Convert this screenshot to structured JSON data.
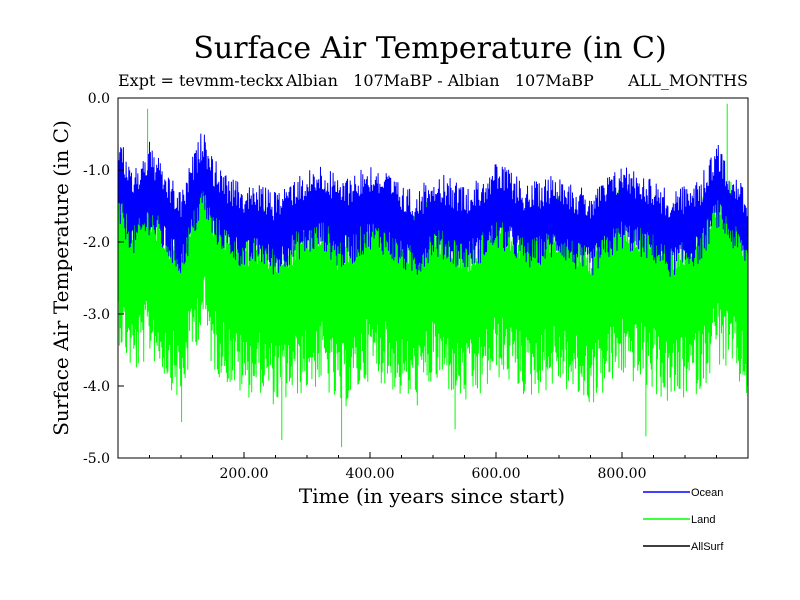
{
  "chart_data": {
    "type": "line",
    "title": "Surface Air Temperature (in C)",
    "subtitle": {
      "experiment": "Expt = tevmm-teckx",
      "comparison": "Albian   107MaBP - Albian   107MaBP",
      "months": "ALL_MONTHS"
    },
    "xlabel": "Time (in years since start)",
    "ylabel": "Surface Air Temperature (in C)",
    "xlim": [
      0,
      1000
    ],
    "ylim": [
      -5.0,
      0.0
    ],
    "x_ticks": [
      200,
      400,
      600,
      800
    ],
    "x_tick_labels": [
      "200.00",
      "400.00",
      "600.00",
      "800.00"
    ],
    "y_ticks": [
      0,
      -1,
      -2,
      -3,
      -4,
      -5
    ],
    "y_tick_labels": [
      "0.0",
      "-1.0",
      "-2.0",
      "-3.0",
      "-4.0",
      "-5.0"
    ],
    "series": [
      {
        "name": "Land",
        "color": "#00ff00",
        "x": [
          0,
          25,
          50,
          75,
          100,
          115,
          135,
          150,
          175,
          200,
          225,
          250,
          275,
          300,
          325,
          350,
          375,
          400,
          425,
          450,
          475,
          500,
          525,
          550,
          575,
          600,
          625,
          650,
          675,
          700,
          725,
          750,
          775,
          800,
          825,
          850,
          875,
          900,
          925,
          950,
          975,
          1000
        ],
        "upper": [
          -0.9,
          -1.3,
          -1.0,
          -1.4,
          -1.6,
          -1.2,
          -0.6,
          -1.1,
          -1.4,
          -1.6,
          -1.5,
          -1.6,
          -1.5,
          -1.4,
          -1.3,
          -1.5,
          -1.4,
          -1.2,
          -1.3,
          -1.5,
          -1.6,
          -1.3,
          -1.4,
          -1.6,
          -1.5,
          -1.2,
          -1.3,
          -1.5,
          -1.4,
          -1.3,
          -1.5,
          -1.6,
          -1.4,
          -1.2,
          -1.3,
          -1.4,
          -1.6,
          -1.5,
          -1.4,
          -0.8,
          -1.2,
          -1.6
        ],
        "center": [
          -2.1,
          -2.6,
          -2.3,
          -2.6,
          -2.9,
          -2.4,
          -1.9,
          -2.4,
          -2.6,
          -2.8,
          -2.8,
          -2.9,
          -2.8,
          -2.7,
          -2.6,
          -2.9,
          -2.8,
          -2.5,
          -2.6,
          -2.8,
          -2.9,
          -2.6,
          -2.7,
          -2.9,
          -2.8,
          -2.5,
          -2.6,
          -2.8,
          -2.7,
          -2.6,
          -2.8,
          -2.9,
          -2.7,
          -2.5,
          -2.6,
          -2.7,
          -2.9,
          -2.8,
          -2.7,
          -2.2,
          -2.5,
          -2.9
        ],
        "lower": [
          -3.4,
          -3.9,
          -3.6,
          -3.9,
          -4.3,
          -3.7,
          -3.2,
          -3.8,
          -4.0,
          -4.2,
          -4.1,
          -4.3,
          -4.2,
          -4.1,
          -4.0,
          -4.4,
          -4.2,
          -3.9,
          -4.0,
          -4.2,
          -4.3,
          -4.0,
          -4.1,
          -4.3,
          -4.2,
          -3.9,
          -4.0,
          -4.2,
          -4.1,
          -4.0,
          -4.2,
          -4.3,
          -4.1,
          -3.9,
          -4.0,
          -4.1,
          -4.3,
          -4.2,
          -4.1,
          -3.7,
          -3.9,
          -4.2
        ],
        "spikes": [
          {
            "x": 47,
            "y": -0.15
          },
          {
            "x": 967,
            "y": -0.08
          },
          {
            "x": 355,
            "y": -4.85
          },
          {
            "x": 260,
            "y": -4.75
          },
          {
            "x": 838,
            "y": -4.7
          },
          {
            "x": 101,
            "y": -4.5
          },
          {
            "x": 535,
            "y": -4.6
          }
        ]
      },
      {
        "name": "Ocean",
        "color": "#0000ff",
        "x": [
          0,
          25,
          50,
          75,
          100,
          115,
          135,
          150,
          175,
          200,
          225,
          250,
          275,
          300,
          325,
          350,
          375,
          400,
          425,
          450,
          475,
          500,
          525,
          550,
          575,
          600,
          625,
          650,
          675,
          700,
          725,
          750,
          775,
          800,
          825,
          850,
          875,
          900,
          925,
          950,
          975,
          1000
        ],
        "upper": [
          -0.5,
          -1.0,
          -0.6,
          -1.0,
          -1.3,
          -0.9,
          -0.4,
          -0.8,
          -1.1,
          -1.2,
          -1.2,
          -1.3,
          -1.1,
          -1.0,
          -0.9,
          -1.1,
          -1.0,
          -0.9,
          -1.0,
          -1.2,
          -1.3,
          -1.0,
          -1.1,
          -1.2,
          -1.1,
          -0.9,
          -1.0,
          -1.2,
          -1.1,
          -1.0,
          -1.2,
          -1.3,
          -1.1,
          -0.9,
          -1.0,
          -1.1,
          -1.3,
          -1.2,
          -1.1,
          -0.6,
          -1.0,
          -1.3
        ],
        "lower": [
          -1.8,
          -2.2,
          -1.9,
          -2.2,
          -2.5,
          -2.1,
          -1.6,
          -2.0,
          -2.2,
          -2.4,
          -2.3,
          -2.5,
          -2.3,
          -2.2,
          -2.1,
          -2.4,
          -2.3,
          -2.1,
          -2.2,
          -2.4,
          -2.5,
          -2.2,
          -2.3,
          -2.4,
          -2.3,
          -2.1,
          -2.2,
          -2.4,
          -2.3,
          -2.2,
          -2.4,
          -2.5,
          -2.3,
          -2.1,
          -2.2,
          -2.3,
          -2.5,
          -2.4,
          -2.3,
          -1.8,
          -2.1,
          -2.4
        ]
      },
      {
        "name": "AllSurf",
        "color": "#000000",
        "x": [],
        "values": []
      }
    ],
    "legend": [
      "Ocean",
      "Land",
      "AllSurf"
    ],
    "legend_position": "bottom-right",
    "grid": false
  }
}
